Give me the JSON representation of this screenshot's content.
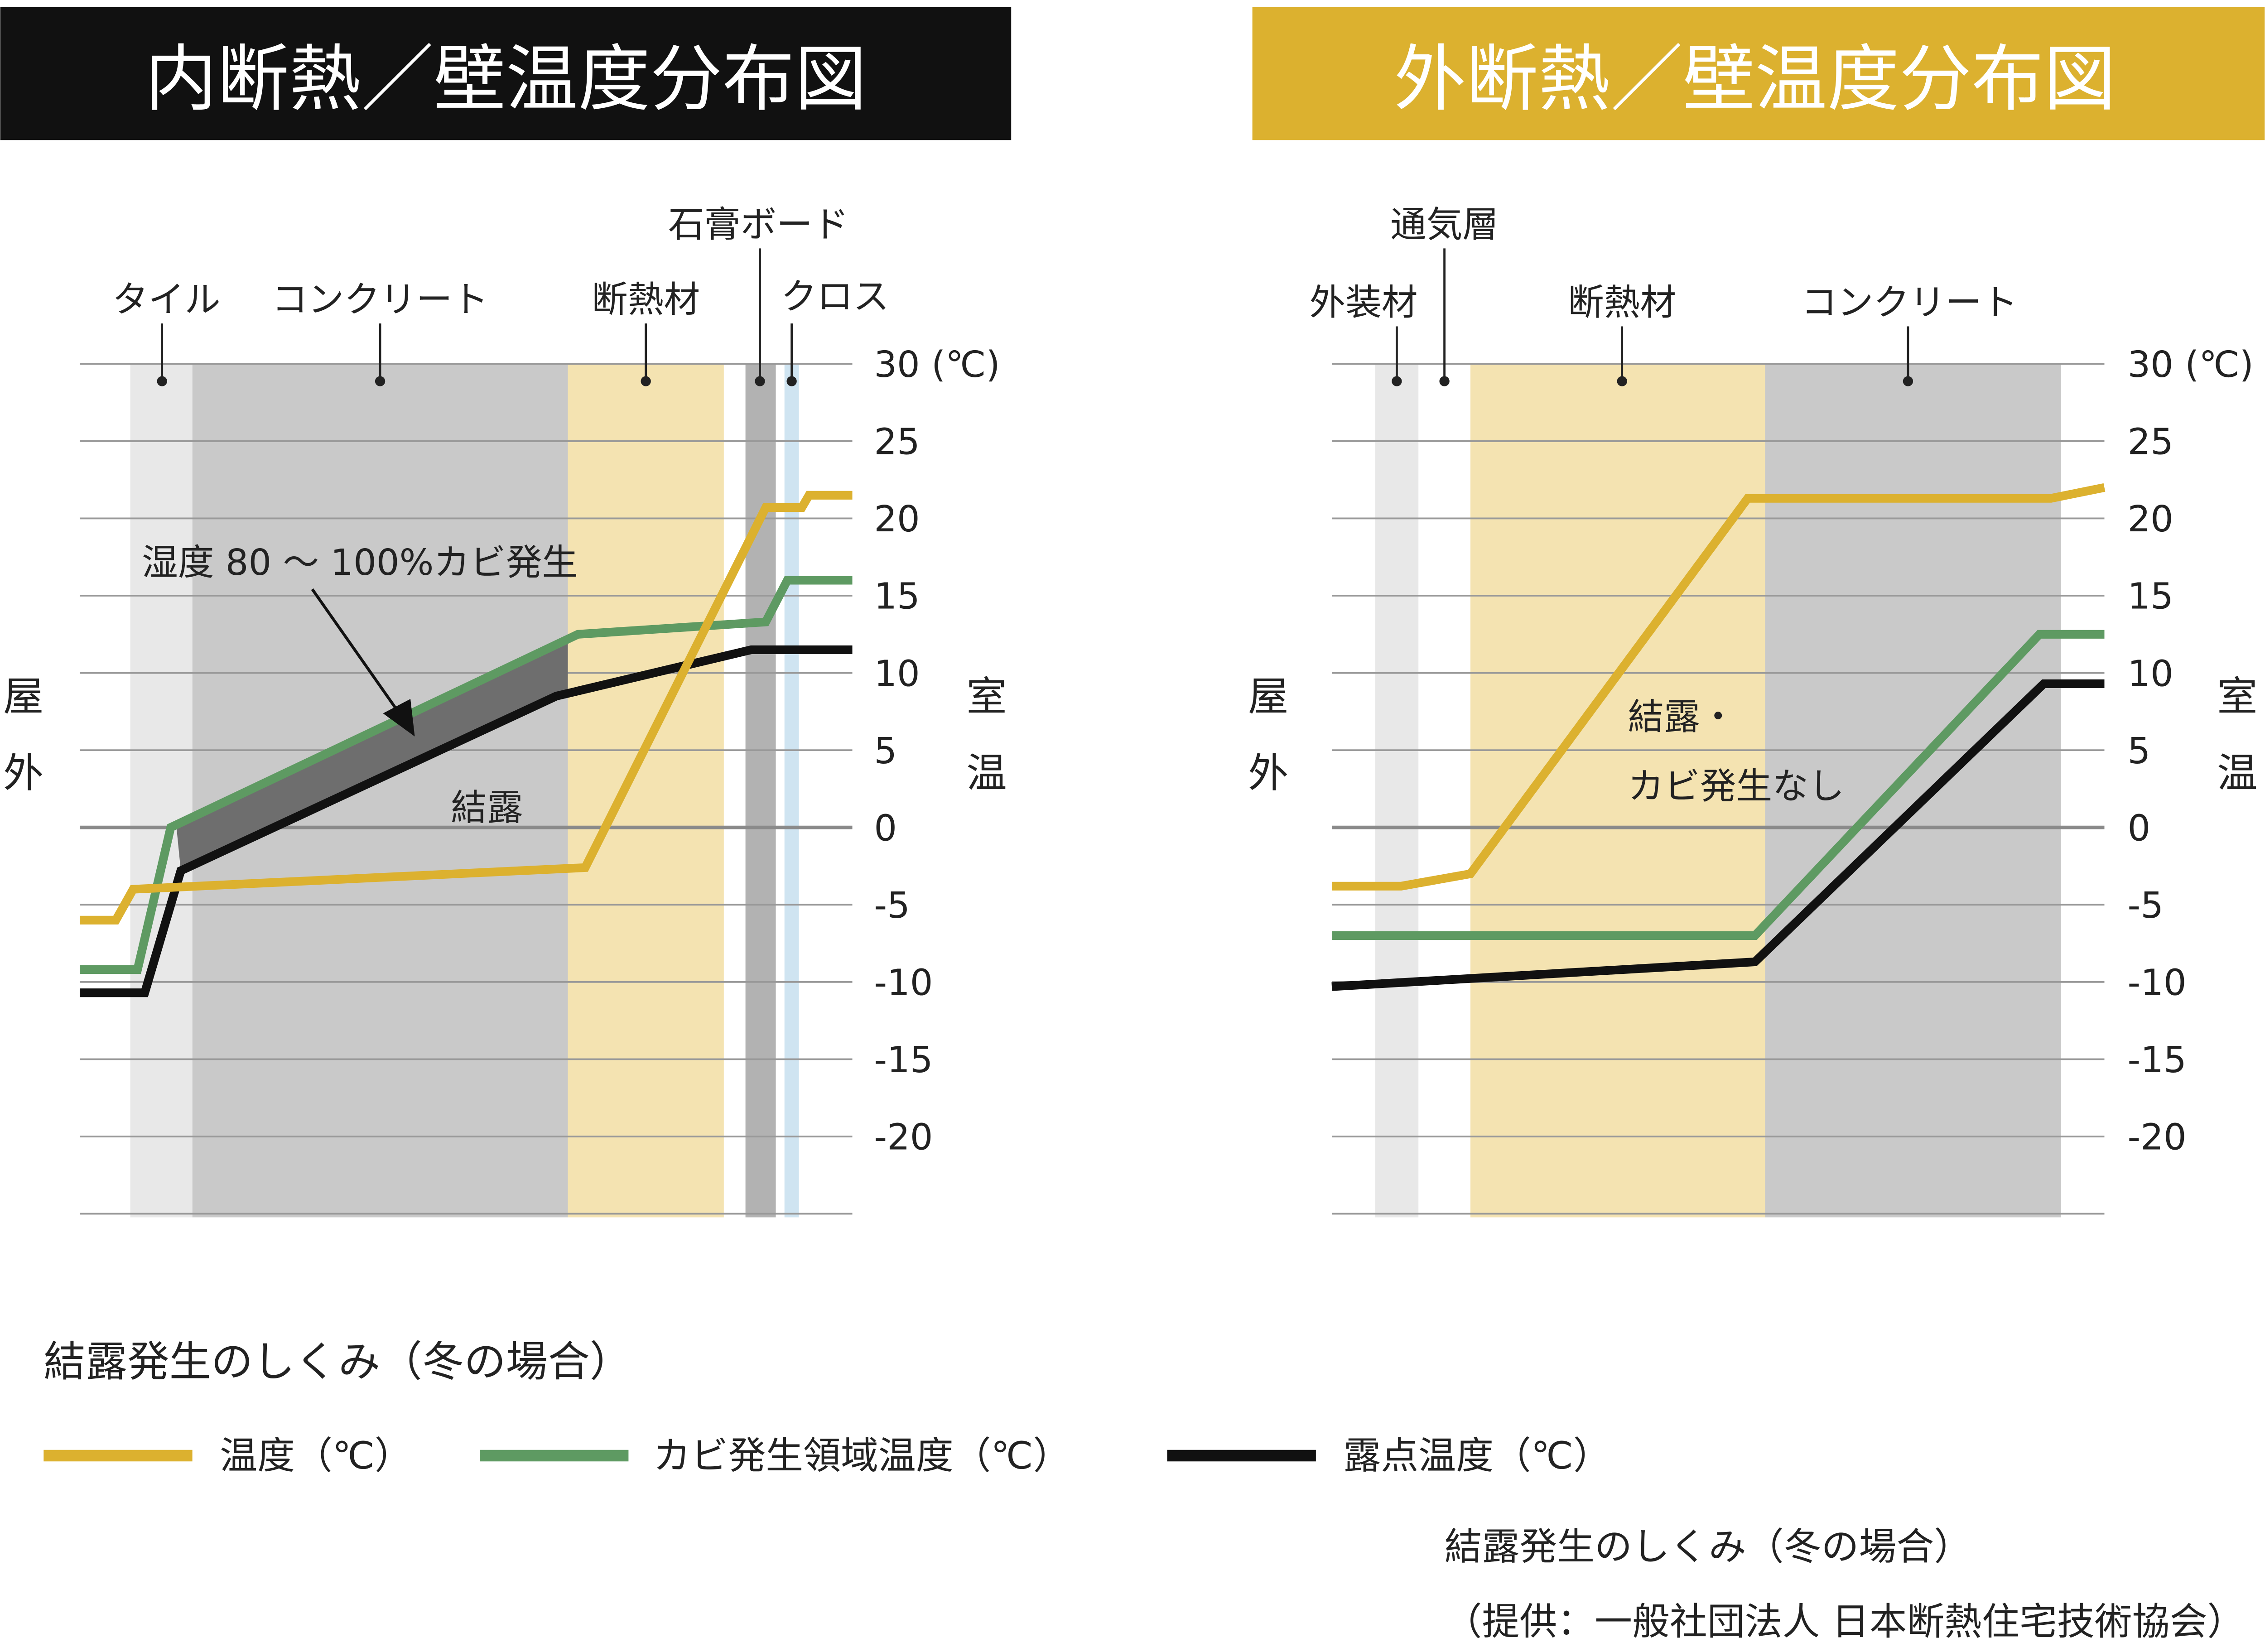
{
  "left": {
    "title": "内断熱／壁温度分布図",
    "title_bg": "#111111",
    "layers": [
      "タイル",
      "コンクリート",
      "断熱材",
      "石膏ボード",
      "クロス"
    ],
    "outside": [
      "屋",
      "外"
    ],
    "inside": [
      "室",
      "温"
    ],
    "annotation_mold": "湿度 80 ～ 100%カビ発生",
    "annotation_condense": "結露"
  },
  "right": {
    "title": "外断熱／壁温度分布図",
    "title_bg": "#dcb12f",
    "layers": [
      "外装材",
      "通気層",
      "断熱材",
      "コンクリート"
    ],
    "outside": [
      "屋",
      "外"
    ],
    "inside": [
      "室",
      "温"
    ],
    "annotation_line1": "結露・",
    "annotation_line2": "カビ発生なし"
  },
  "axis": {
    "ticks": [
      "30 (℃)",
      "25",
      "20",
      "15",
      "10",
      "5",
      "0",
      "-5",
      "-10",
      "-15",
      "-20"
    ]
  },
  "chart_data": [
    {
      "type": "line",
      "title": "内断熱／壁温度分布図",
      "ylabel": "℃",
      "ylim": [
        -25,
        30
      ],
      "grid": true,
      "series": [
        {
          "name": "温度（℃）",
          "color": "#dcb12f",
          "values": [
            -6,
            -6,
            -4,
            -2.6,
            20.7,
            20.7,
            21.5,
            21.5
          ]
        },
        {
          "name": "カビ発生領域温度（℃）",
          "color": "#5e9a62",
          "values": [
            -9.2,
            -9.2,
            0,
            12.5,
            13.3,
            16,
            16
          ]
        },
        {
          "name": "露点温度（℃）",
          "color": "#111111",
          "values": [
            -10.7,
            -10.7,
            -2.8,
            8.5,
            11.5,
            11.5
          ]
        }
      ]
    },
    {
      "type": "line",
      "title": "外断熱／壁温度分布図",
      "ylabel": "℃",
      "ylim": [
        -25,
        30
      ],
      "grid": true,
      "series": [
        {
          "name": "温度（℃）",
          "color": "#dcb12f",
          "values": [
            -3.8,
            -3.8,
            -3,
            21.3,
            21.3,
            22
          ]
        },
        {
          "name": "カビ発生領域温度（℃）",
          "color": "#5e9a62",
          "values": [
            -7,
            -7,
            12.5,
            12.5
          ]
        },
        {
          "name": "露点温度（℃）",
          "color": "#111111",
          "values": [
            -10.3,
            -8.7,
            9.3,
            9.3
          ]
        }
      ]
    }
  ],
  "legend": {
    "heading": "結露発生のしくみ（冬の場合）",
    "items": [
      "温度（℃）",
      "カビ発生領域温度（℃）",
      "露点温度（℃）"
    ]
  },
  "footer": {
    "caption": "結露発生のしくみ（冬の場合）",
    "credit": "（提供：一般社団法人 日本断熱住宅技術協会）"
  }
}
